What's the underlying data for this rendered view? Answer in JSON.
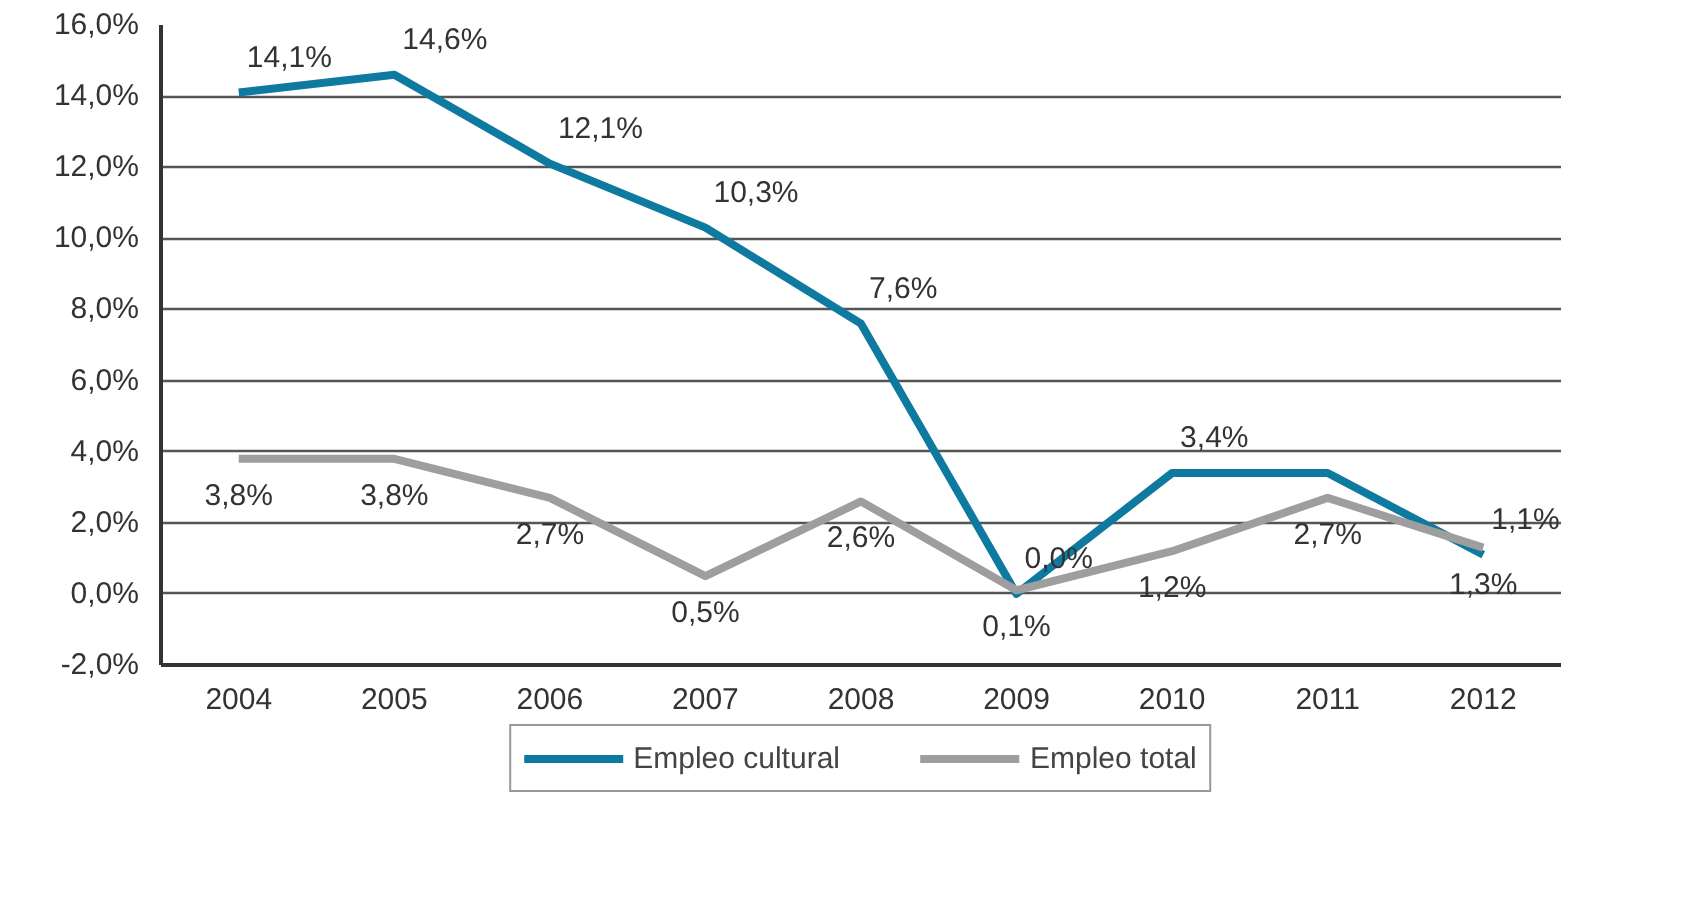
{
  "chart_data": {
    "type": "line",
    "categories": [
      "2004",
      "2005",
      "2006",
      "2007",
      "2008",
      "2009",
      "2010",
      "2011",
      "2012"
    ],
    "series": [
      {
        "name": "Empleo cultural",
        "color": "#0e7aa0",
        "values": [
          14.1,
          14.6,
          12.1,
          10.3,
          7.6,
          0.0,
          3.4,
          3.4,
          1.1
        ],
        "value_labels": [
          "14,1%",
          "14,6%",
          "12,1%",
          "10,3%",
          "7,6%",
          "0,0%",
          "3,4%",
          null,
          "1,1%"
        ]
      },
      {
        "name": "Empleo total",
        "color": "#9e9e9e",
        "values": [
          3.8,
          3.8,
          2.7,
          0.5,
          2.6,
          0.1,
          1.2,
          2.7,
          1.3
        ],
        "value_labels": [
          "3,8%",
          "3,8%",
          "2,7%",
          "0,5%",
          "2,6%",
          "0,1%",
          "1,2%",
          "2,7%",
          "1,3%"
        ]
      }
    ],
    "ylim": [
      -2,
      16
    ],
    "yticks": [
      {
        "value": -2,
        "label": "-2,0%"
      },
      {
        "value": 0,
        "label": "0,0%"
      },
      {
        "value": 2,
        "label": "2,0%"
      },
      {
        "value": 4,
        "label": "4,0%"
      },
      {
        "value": 6,
        "label": "6,0%"
      },
      {
        "value": 8,
        "label": "8,0%"
      },
      {
        "value": 10,
        "label": "10,0%"
      },
      {
        "value": 12,
        "label": "12,0%"
      },
      {
        "value": 14,
        "label": "14,0%"
      },
      {
        "value": 16,
        "label": "16,0%"
      }
    ],
    "grid": "y",
    "legend": "bottom",
    "marker": "none",
    "line_style": "solid"
  }
}
